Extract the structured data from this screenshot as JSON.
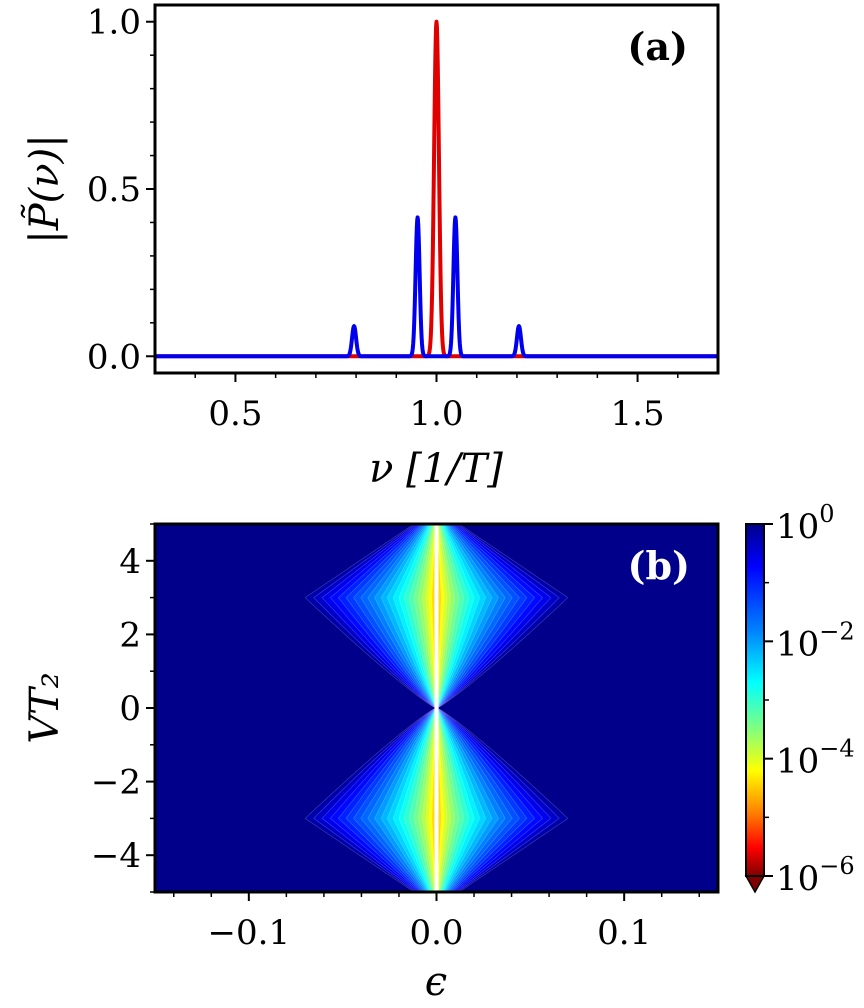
{
  "chart_data": [
    {
      "type": "line",
      "panel": "(a)",
      "xlabel": "ν [1/T]",
      "ylabel": "|P̃(ν)|",
      "xlim": [
        0.3,
        1.7
      ],
      "ylim": [
        -0.05,
        1.05
      ],
      "xticks": [
        "0.5",
        "1.0",
        "1.5"
      ],
      "xtick_values": [
        0.5,
        1.0,
        1.5
      ],
      "yticks": [
        "0.0",
        "0.5",
        "1.0"
      ],
      "ytick_values": [
        0.0,
        0.5,
        1.0
      ],
      "series": [
        {
          "name": "red",
          "color": "#e00000",
          "peaks": [
            {
              "center": 1.0,
              "height": 1.0,
              "width": 0.006
            }
          ]
        },
        {
          "name": "blue",
          "color": "#0000ee",
          "peaks": [
            {
              "center": 0.795,
              "height": 0.09,
              "width": 0.005
            },
            {
              "center": 0.953,
              "height": 0.415,
              "width": 0.005
            },
            {
              "center": 1.047,
              "height": 0.415,
              "width": 0.005
            },
            {
              "center": 1.205,
              "height": 0.09,
              "width": 0.005
            }
          ]
        }
      ]
    },
    {
      "type": "heatmap",
      "panel": "(b)",
      "xlabel": "ϵ",
      "ylabel": "VT₂",
      "xlim": [
        -0.15,
        0.15
      ],
      "ylim": [
        -5,
        5
      ],
      "xticks": [
        "−0.1",
        "0.0",
        "0.1"
      ],
      "xtick_values": [
        -0.1,
        0.0,
        0.1
      ],
      "yticks": [
        "−4",
        "−2",
        "0",
        "2",
        "4"
      ],
      "ytick_values": [
        -4,
        -2,
        0,
        2,
        4
      ],
      "colorbar": {
        "scale": "log",
        "range": [
          1e-06,
          1
        ],
        "colormap": "jet_r",
        "ticks": [
          {
            "base": "10",
            "exp": "0",
            "value": 1
          },
          {
            "base": "10",
            "exp": "−2",
            "value": 0.01
          },
          {
            "base": "10",
            "exp": "−4",
            "value": 0.0001
          },
          {
            "base": "10",
            "exp": "−6",
            "value": 1e-06
          }
        ]
      }
    }
  ]
}
